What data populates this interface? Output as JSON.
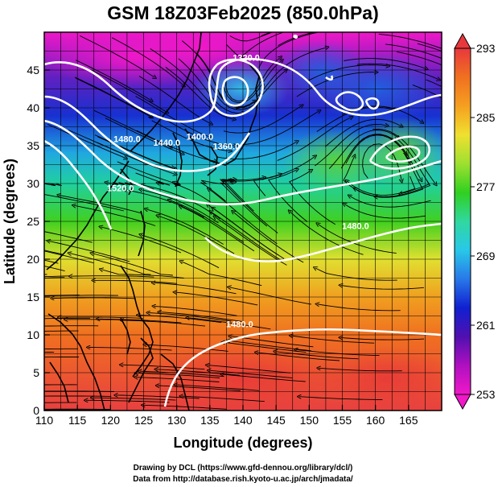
{
  "title": "GSM 18Z03Feb2025 (850.0hPa)",
  "credits": [
    "Drawing by DCL (https://www.gfd-dennou.org/library/dcl/)",
    "Data from http://database.rish.kyoto-u.ac.jp/arch/jmadata/"
  ],
  "map": {
    "xlabel": "Longitude (degrees)",
    "ylabel": "Latitude  (degrees)",
    "xlim": [
      110,
      170
    ],
    "ylim": [
      0,
      50
    ],
    "xticks": [
      110,
      115,
      120,
      125,
      130,
      135,
      140,
      145,
      150,
      155,
      160,
      165
    ],
    "yticks": [
      0,
      5,
      10,
      15,
      20,
      25,
      30,
      35,
      40,
      45
    ],
    "grid_step_deg": 2.5
  },
  "contour_labels": [
    {
      "text": "1320.0",
      "lon": 140.5,
      "lat": 46.2
    },
    {
      "text": "1360.0",
      "lon": 137.5,
      "lat": 34.5
    },
    {
      "text": "1400.0",
      "lon": 133.5,
      "lat": 35.8
    },
    {
      "text": "1440.0",
      "lon": 128.5,
      "lat": 35.0
    },
    {
      "text": "1480.0",
      "lon": 122.5,
      "lat": 35.5
    },
    {
      "text": "1520.0",
      "lon": 121.5,
      "lat": 29.0
    },
    {
      "text": "1480.0",
      "lon": 157.0,
      "lat": 24.0
    },
    {
      "text": "1480.0",
      "lon": 139.5,
      "lat": 11.0
    }
  ],
  "colorbar": {
    "ticks": [
      "293",
      "285",
      "277",
      "269",
      "261",
      "253"
    ],
    "min": 253,
    "max": 293,
    "colors_top_to_bottom": [
      "#e8383d",
      "#f07020",
      "#f5a020",
      "#f0e030",
      "#9ee030",
      "#30d020",
      "#30d8a0",
      "#28c8e8",
      "#2878e8",
      "#1020d0",
      "#5010b0",
      "#b010c0",
      "#f018c8"
    ]
  }
}
